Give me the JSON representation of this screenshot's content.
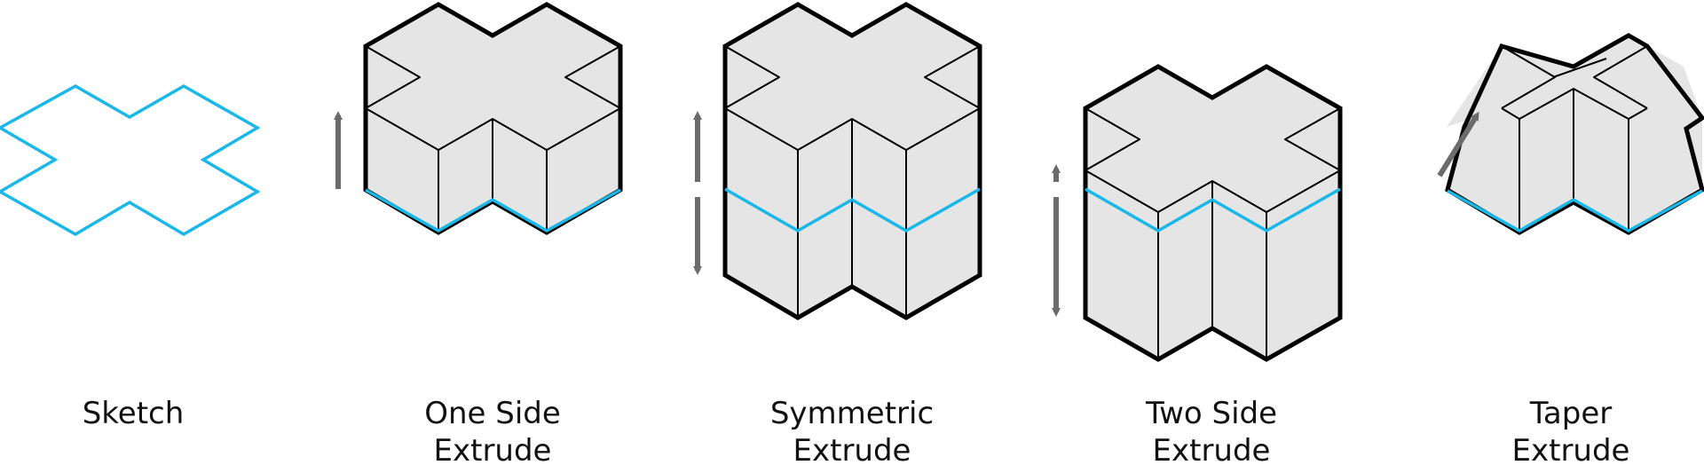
{
  "colors": {
    "sketch_outline": "#1ab8e8",
    "solid_edge": "#000000",
    "solid_fill": "#e5e5e5",
    "direction_arrow": "#6b6b6b",
    "background": "#ffffff",
    "text": "#111111"
  },
  "panels": [
    {
      "id": "sketch",
      "caption_line1": "Sketch",
      "caption_line2": "",
      "icon": "cross-shaped-sketch-profile"
    },
    {
      "id": "one-side",
      "caption_line1": "One Side",
      "caption_line2": "Extrude",
      "icon": "single-direction-arrow"
    },
    {
      "id": "symmetric",
      "caption_line1": "Symmetric",
      "caption_line2": "Extrude",
      "icon": "mirrored-double-arrow"
    },
    {
      "id": "two-side",
      "caption_line1": "Two Side",
      "caption_line2": "Extrude",
      "icon": "independent-double-arrow"
    },
    {
      "id": "taper",
      "caption_line1": "Taper",
      "caption_line2": "Extrude",
      "icon": "angled-taper-arrow"
    }
  ]
}
